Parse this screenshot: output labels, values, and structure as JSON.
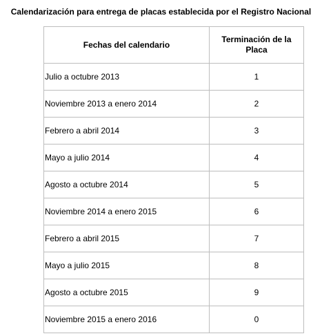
{
  "title": "Calendarización para entrega de placas establecida por el Registro Nacional",
  "table": {
    "headers": [
      "Fechas del calendario",
      "Terminación de la Placa"
    ],
    "rows": [
      [
        "Julio a octubre 2013",
        "1"
      ],
      [
        "Noviembre 2013 a enero 2014",
        "2"
      ],
      [
        "Febrero a abril 2014",
        "3"
      ],
      [
        "Mayo a julio 2014",
        "4"
      ],
      [
        "Agosto a octubre 2014",
        "5"
      ],
      [
        "Noviembre 2014 a enero 2015",
        "6"
      ],
      [
        "Febrero a abril 2015",
        "7"
      ],
      [
        "Mayo a julio 2015",
        "8"
      ],
      [
        "Agosto a octubre 2015",
        "9"
      ],
      [
        "Noviembre 2015 a enero 2016",
        "0"
      ]
    ]
  }
}
